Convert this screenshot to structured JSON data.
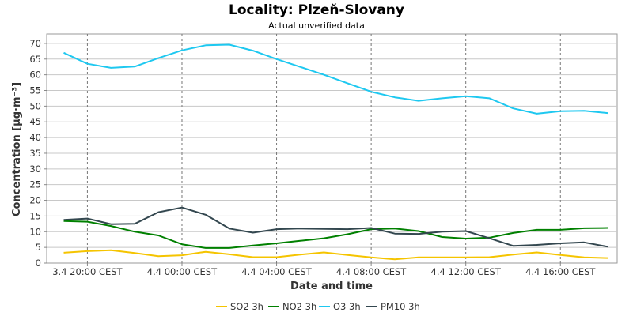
{
  "chart_data": {
    "type": "line",
    "title": "Locality: Plzeň-Slovany",
    "subtitle": "Actual unverified data",
    "xlabel": "Date and time",
    "ylabel": "Concentration [µg·m⁻³]",
    "ylim": [
      0,
      73
    ],
    "yticks": [
      0,
      5,
      10,
      15,
      20,
      25,
      30,
      35,
      40,
      45,
      50,
      55,
      60,
      65,
      70
    ],
    "x_hours": [
      0,
      1,
      2,
      3,
      4,
      5,
      6,
      7,
      8,
      9,
      10,
      11,
      12,
      13,
      14,
      15,
      16,
      17,
      18,
      19,
      20,
      21,
      22,
      23
    ],
    "x_start": "3.4 19:00 CEST",
    "xticks": [
      {
        "hour": 1,
        "label": "3.4 20:00 CEST"
      },
      {
        "hour": 5,
        "label": "4.4 00:00 CEST"
      },
      {
        "hour": 9,
        "label": "4.4 04:00 CEST"
      },
      {
        "hour": 13,
        "label": "4.4 08:00 CEST"
      },
      {
        "hour": 17,
        "label": "4.4 12:00 CEST"
      },
      {
        "hour": 21,
        "label": "4.4 16:00 CEST"
      }
    ],
    "grid": true,
    "legend_position": "bottom",
    "series": [
      {
        "name": "SO2 3h",
        "color": "#f5c400",
        "values": [
          3.3,
          3.8,
          4.1,
          3.2,
          2.2,
          2.5,
          3.6,
          2.8,
          1.9,
          1.9,
          2.7,
          3.4,
          2.6,
          1.8,
          1.2,
          1.8,
          1.8,
          1.8,
          1.9,
          2.7,
          3.4,
          2.6,
          1.8,
          1.6
        ]
      },
      {
        "name": "NO2 3h",
        "color": "#008000",
        "values": [
          13.4,
          13.2,
          11.8,
          10.0,
          8.8,
          6.0,
          4.8,
          4.8,
          5.6,
          6.3,
          7.1,
          7.9,
          9.2,
          10.8,
          11.0,
          10.2,
          8.3,
          7.8,
          8.1,
          9.6,
          10.6,
          10.6,
          11.1,
          11.2
        ]
      },
      {
        "name": "O3 3h",
        "color": "#1ec8f0",
        "values": [
          67.0,
          63.5,
          62.2,
          62.6,
          65.3,
          67.8,
          69.4,
          69.6,
          67.7,
          65.0,
          62.5,
          60.0,
          57.3,
          54.6,
          52.8,
          51.7,
          52.5,
          53.2,
          52.5,
          49.3,
          47.6,
          48.4,
          48.5,
          47.8
        ]
      },
      {
        "name": "PM10 3h",
        "color": "#33474f",
        "values": [
          13.8,
          14.2,
          12.4,
          12.5,
          16.2,
          17.7,
          15.4,
          11.0,
          9.7,
          10.8,
          11.0,
          10.9,
          10.8,
          11.2,
          9.4,
          9.3,
          10.0,
          10.2,
          7.9,
          5.5,
          5.8,
          6.3,
          6.6,
          5.2
        ]
      }
    ]
  }
}
